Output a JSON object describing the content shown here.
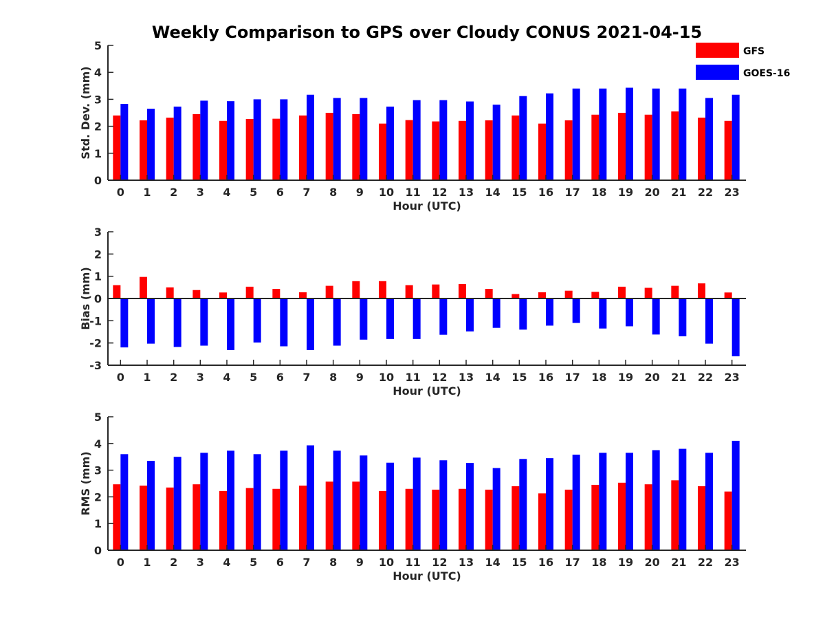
{
  "figure": {
    "title": "Weekly Comparison to GPS over Cloudy CONUS 2021-04-15"
  },
  "legend": {
    "placement": "top-right",
    "entries": [
      {
        "label": "GFS",
        "color": "#ff0000"
      },
      {
        "label": "GOES-16",
        "color": "#0000ff"
      }
    ]
  },
  "chart_data": [
    {
      "type": "bar",
      "title": "Weekly Comparison to GPS over Cloudy CONUS 2021-04-15",
      "xlabel": "Hour (UTC)",
      "ylabel": "Std. Dev. (mm)",
      "ylim": [
        0,
        5
      ],
      "yticks": [
        "0",
        "1",
        "2",
        "3",
        "4",
        "5"
      ],
      "grid": false,
      "categories": [
        "0",
        "1",
        "2",
        "3",
        "4",
        "5",
        "6",
        "7",
        "8",
        "9",
        "10",
        "11",
        "12",
        "13",
        "14",
        "15",
        "16",
        "17",
        "18",
        "19",
        "20",
        "21",
        "22",
        "23"
      ],
      "series": [
        {
          "name": "GFS",
          "color": "#ff0000",
          "values": [
            2.4,
            2.22,
            2.32,
            2.45,
            2.2,
            2.27,
            2.28,
            2.4,
            2.5,
            2.45,
            2.1,
            2.23,
            2.18,
            2.2,
            2.22,
            2.4,
            2.1,
            2.22,
            2.43,
            2.5,
            2.43,
            2.55,
            2.32,
            2.2
          ]
        },
        {
          "name": "GOES-16",
          "color": "#0000ff",
          "values": [
            2.83,
            2.65,
            2.73,
            2.95,
            2.93,
            3.0,
            3.0,
            3.17,
            3.05,
            3.05,
            2.73,
            2.97,
            2.97,
            2.92,
            2.8,
            3.12,
            3.22,
            3.4,
            3.4,
            3.43,
            3.4,
            3.4,
            3.05,
            3.17
          ]
        }
      ]
    },
    {
      "type": "bar",
      "xlabel": "Hour (UTC)",
      "ylabel": "Bias (mm)",
      "ylim": [
        -3,
        3
      ],
      "yticks": [
        "-3",
        "-2",
        "-1",
        "0",
        "1",
        "2",
        "3"
      ],
      "grid": false,
      "zero_line": true,
      "categories": [
        "0",
        "1",
        "2",
        "3",
        "4",
        "5",
        "6",
        "7",
        "8",
        "9",
        "10",
        "11",
        "12",
        "13",
        "14",
        "15",
        "16",
        "17",
        "18",
        "19",
        "20",
        "21",
        "22",
        "23"
      ],
      "series": [
        {
          "name": "GFS",
          "color": "#ff0000",
          "values": [
            0.6,
            0.97,
            0.5,
            0.38,
            0.27,
            0.53,
            0.43,
            0.28,
            0.57,
            0.78,
            0.78,
            0.6,
            0.63,
            0.65,
            0.43,
            0.2,
            0.28,
            0.35,
            0.3,
            0.53,
            0.48,
            0.57,
            0.68,
            0.27
          ]
        },
        {
          "name": "GOES-16",
          "color": "#0000ff",
          "values": [
            -2.2,
            -2.03,
            -2.18,
            -2.12,
            -2.32,
            -1.98,
            -2.15,
            -2.32,
            -2.12,
            -1.85,
            -1.82,
            -1.82,
            -1.63,
            -1.48,
            -1.32,
            -1.4,
            -1.22,
            -1.1,
            -1.35,
            -1.25,
            -1.62,
            -1.7,
            -2.03,
            -2.6
          ]
        }
      ]
    },
    {
      "type": "bar",
      "xlabel": "Hour (UTC)",
      "ylabel": "RMS (mm)",
      "ylim": [
        0,
        5
      ],
      "yticks": [
        "0",
        "1",
        "2",
        "3",
        "4",
        "5"
      ],
      "grid": false,
      "categories": [
        "0",
        "1",
        "2",
        "3",
        "4",
        "5",
        "6",
        "7",
        "8",
        "9",
        "10",
        "11",
        "12",
        "13",
        "14",
        "15",
        "16",
        "17",
        "18",
        "19",
        "20",
        "21",
        "22",
        "23"
      ],
      "series": [
        {
          "name": "GFS",
          "color": "#ff0000",
          "values": [
            2.47,
            2.42,
            2.35,
            2.47,
            2.22,
            2.33,
            2.3,
            2.42,
            2.57,
            2.57,
            2.22,
            2.3,
            2.27,
            2.3,
            2.27,
            2.4,
            2.13,
            2.27,
            2.45,
            2.53,
            2.47,
            2.62,
            2.4,
            2.2
          ]
        },
        {
          "name": "GOES-16",
          "color": "#0000ff",
          "values": [
            3.6,
            3.35,
            3.5,
            3.65,
            3.73,
            3.6,
            3.73,
            3.93,
            3.73,
            3.55,
            3.28,
            3.47,
            3.37,
            3.27,
            3.08,
            3.42,
            3.45,
            3.58,
            3.65,
            3.65,
            3.75,
            3.8,
            3.65,
            4.1
          ]
        }
      ]
    }
  ]
}
